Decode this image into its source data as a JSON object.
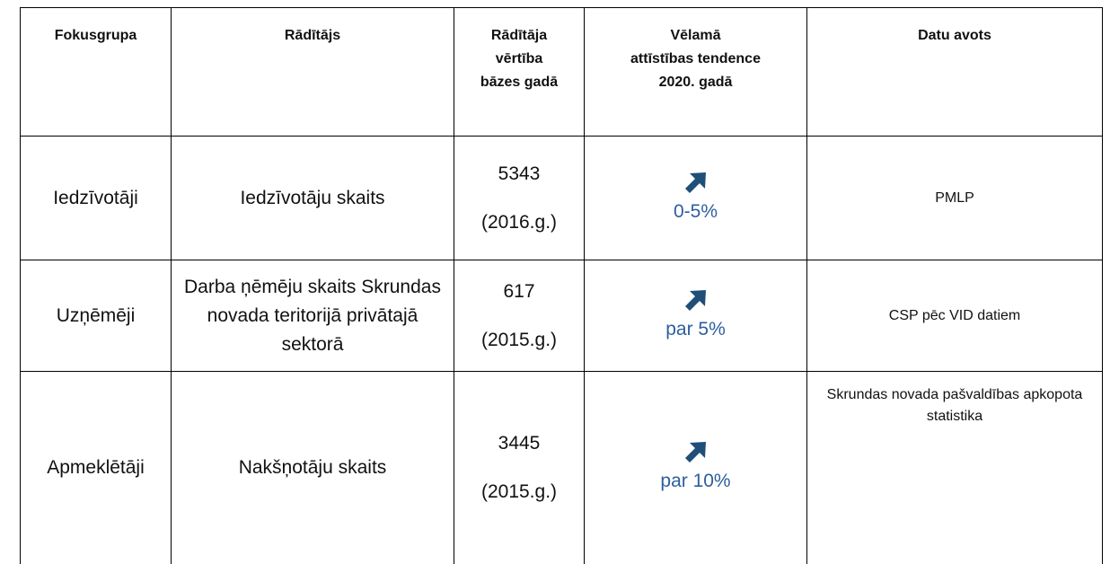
{
  "table": {
    "header": [
      [
        "Fokusgrupa"
      ],
      [
        "Rādītājs"
      ],
      [
        "Rādītāja",
        "vērtība",
        "bāzes gadā"
      ],
      [
        "Vēlamā",
        "attīstības tendence",
        "2020. gadā"
      ],
      [
        "Datu avots"
      ]
    ],
    "rows": [
      {
        "group": "Iedzīvotāji",
        "indicator": "Iedzīvotāju skaits",
        "base_value": "5343",
        "base_year": "(2016.g.)",
        "trend": "0-5%",
        "source": "PMLP"
      },
      {
        "group": "Uzņēmēji",
        "indicator": "Darba ņēmēju skaits Skrundas novada teritorijā privātajā sektorā",
        "base_value": "617",
        "base_year": "(2015.g.)",
        "trend": "par 5%",
        "source": "CSP pēc VID datiem"
      },
      {
        "group": "Apmeklētāji",
        "indicator": "Nakšņotāju skaits",
        "base_value": "3445",
        "base_year": "(2015.g.)",
        "trend": "par 10%",
        "source": "Skrundas novada pašvaldības apkopota statistika"
      }
    ]
  }
}
